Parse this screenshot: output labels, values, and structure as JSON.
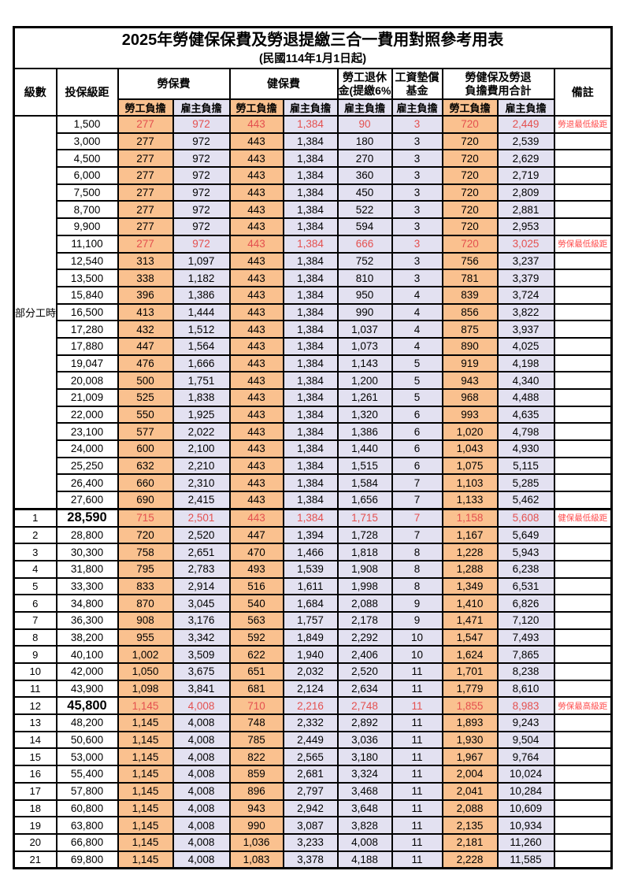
{
  "title": "2025年勞健保保費及勞退提繳三合一費用對照參考用表",
  "subtitle": "(民國114年1月1日起)",
  "colors": {
    "orange": "#fac18f",
    "lavender": "#e3e1f1",
    "red": "#e4504f",
    "remark_red": "#ff4d4d"
  },
  "header": {
    "level": "級數",
    "bracket": "投保級距",
    "labor_insurance": "勞保費",
    "health_insurance": "健保費",
    "pension_line1": "勞工退休",
    "pension_line2": "金(提繳6%)",
    "wage_fund_line1": "工資墊償",
    "wage_fund_line2": "基金",
    "total_line1": "勞健保及勞退",
    "total_line2": "負擔費用合計",
    "remark": "備註",
    "employee": "勞工負擔",
    "employer": "雇主負擔"
  },
  "part_time": {
    "label": "部分工時",
    "span": 23
  },
  "rows": [
    {
      "level": "",
      "bracket": "1,500",
      "values": [
        "277",
        "972",
        "443",
        "1,384",
        "90",
        "3",
        "720",
        "2,449"
      ],
      "remark": "勞退最低級距",
      "red": true,
      "bold": false,
      "thick": false
    },
    {
      "level": "",
      "bracket": "3,000",
      "values": [
        "277",
        "972",
        "443",
        "1,384",
        "180",
        "3",
        "720",
        "2,539"
      ],
      "remark": "",
      "red": false,
      "bold": false,
      "thick": false
    },
    {
      "level": "",
      "bracket": "4,500",
      "values": [
        "277",
        "972",
        "443",
        "1,384",
        "270",
        "3",
        "720",
        "2,629"
      ],
      "remark": "",
      "red": false,
      "bold": false,
      "thick": false
    },
    {
      "level": "",
      "bracket": "6,000",
      "values": [
        "277",
        "972",
        "443",
        "1,384",
        "360",
        "3",
        "720",
        "2,719"
      ],
      "remark": "",
      "red": false,
      "bold": false,
      "thick": false
    },
    {
      "level": "",
      "bracket": "7,500",
      "values": [
        "277",
        "972",
        "443",
        "1,384",
        "450",
        "3",
        "720",
        "2,809"
      ],
      "remark": "",
      "red": false,
      "bold": false,
      "thick": false
    },
    {
      "level": "",
      "bracket": "8,700",
      "values": [
        "277",
        "972",
        "443",
        "1,384",
        "522",
        "3",
        "720",
        "2,881"
      ],
      "remark": "",
      "red": false,
      "bold": false,
      "thick": false
    },
    {
      "level": "",
      "bracket": "9,900",
      "values": [
        "277",
        "972",
        "443",
        "1,384",
        "594",
        "3",
        "720",
        "2,953"
      ],
      "remark": "",
      "red": false,
      "bold": false,
      "thick": false
    },
    {
      "level": "",
      "bracket": "11,100",
      "values": [
        "277",
        "972",
        "443",
        "1,384",
        "666",
        "3",
        "720",
        "3,025"
      ],
      "remark": "勞保最低級距",
      "red": true,
      "bold": false,
      "thick": false
    },
    {
      "level": "",
      "bracket": "12,540",
      "values": [
        "313",
        "1,097",
        "443",
        "1,384",
        "752",
        "3",
        "756",
        "3,237"
      ],
      "remark": "",
      "red": false,
      "bold": false,
      "thick": false
    },
    {
      "level": "",
      "bracket": "13,500",
      "values": [
        "338",
        "1,182",
        "443",
        "1,384",
        "810",
        "3",
        "781",
        "3,379"
      ],
      "remark": "",
      "red": false,
      "bold": false,
      "thick": false
    },
    {
      "level": "",
      "bracket": "15,840",
      "values": [
        "396",
        "1,386",
        "443",
        "1,384",
        "950",
        "4",
        "839",
        "3,724"
      ],
      "remark": "",
      "red": false,
      "bold": false,
      "thick": false
    },
    {
      "level": "",
      "bracket": "16,500",
      "values": [
        "413",
        "1,444",
        "443",
        "1,384",
        "990",
        "4",
        "856",
        "3,822"
      ],
      "remark": "",
      "red": false,
      "bold": false,
      "thick": false
    },
    {
      "level": "",
      "bracket": "17,280",
      "values": [
        "432",
        "1,512",
        "443",
        "1,384",
        "1,037",
        "4",
        "875",
        "3,937"
      ],
      "remark": "",
      "red": false,
      "bold": false,
      "thick": false
    },
    {
      "level": "",
      "bracket": "17,880",
      "values": [
        "447",
        "1,564",
        "443",
        "1,384",
        "1,073",
        "4",
        "890",
        "4,025"
      ],
      "remark": "",
      "red": false,
      "bold": false,
      "thick": false
    },
    {
      "level": "",
      "bracket": "19,047",
      "values": [
        "476",
        "1,666",
        "443",
        "1,384",
        "1,143",
        "5",
        "919",
        "4,198"
      ],
      "remark": "",
      "red": false,
      "bold": false,
      "thick": false
    },
    {
      "level": "",
      "bracket": "20,008",
      "values": [
        "500",
        "1,751",
        "443",
        "1,384",
        "1,200",
        "5",
        "943",
        "4,340"
      ],
      "remark": "",
      "red": false,
      "bold": false,
      "thick": false
    },
    {
      "level": "",
      "bracket": "21,009",
      "values": [
        "525",
        "1,838",
        "443",
        "1,384",
        "1,261",
        "5",
        "968",
        "4,488"
      ],
      "remark": "",
      "red": false,
      "bold": false,
      "thick": false
    },
    {
      "level": "",
      "bracket": "22,000",
      "values": [
        "550",
        "1,925",
        "443",
        "1,384",
        "1,320",
        "6",
        "993",
        "4,635"
      ],
      "remark": "",
      "red": false,
      "bold": false,
      "thick": false
    },
    {
      "level": "",
      "bracket": "23,100",
      "values": [
        "577",
        "2,022",
        "443",
        "1,384",
        "1,386",
        "6",
        "1,020",
        "4,798"
      ],
      "remark": "",
      "red": false,
      "bold": false,
      "thick": false
    },
    {
      "level": "",
      "bracket": "24,000",
      "values": [
        "600",
        "2,100",
        "443",
        "1,384",
        "1,440",
        "6",
        "1,043",
        "4,930"
      ],
      "remark": "",
      "red": false,
      "bold": false,
      "thick": false
    },
    {
      "level": "",
      "bracket": "25,250",
      "values": [
        "632",
        "2,210",
        "443",
        "1,384",
        "1,515",
        "6",
        "1,075",
        "5,115"
      ],
      "remark": "",
      "red": false,
      "bold": false,
      "thick": false
    },
    {
      "level": "",
      "bracket": "26,400",
      "values": [
        "660",
        "2,310",
        "443",
        "1,384",
        "1,584",
        "7",
        "1,103",
        "5,285"
      ],
      "remark": "",
      "red": false,
      "bold": false,
      "thick": false
    },
    {
      "level": "",
      "bracket": "27,600",
      "values": [
        "690",
        "2,415",
        "443",
        "1,384",
        "1,656",
        "7",
        "1,133",
        "5,462"
      ],
      "remark": "",
      "red": false,
      "bold": false,
      "thick": false
    },
    {
      "level": "1",
      "bracket": "28,590",
      "values": [
        "715",
        "2,501",
        "443",
        "1,384",
        "1,715",
        "7",
        "1,158",
        "5,608"
      ],
      "remark": "健保最低級距",
      "red": true,
      "bold": true,
      "thick": true
    },
    {
      "level": "2",
      "bracket": "28,800",
      "values": [
        "720",
        "2,520",
        "447",
        "1,394",
        "1,728",
        "7",
        "1,167",
        "5,649"
      ],
      "remark": "",
      "red": false,
      "bold": false,
      "thick": false
    },
    {
      "level": "3",
      "bracket": "30,300",
      "values": [
        "758",
        "2,651",
        "470",
        "1,466",
        "1,818",
        "8",
        "1,228",
        "5,943"
      ],
      "remark": "",
      "red": false,
      "bold": false,
      "thick": false
    },
    {
      "level": "4",
      "bracket": "31,800",
      "values": [
        "795",
        "2,783",
        "493",
        "1,539",
        "1,908",
        "8",
        "1,288",
        "6,238"
      ],
      "remark": "",
      "red": false,
      "bold": false,
      "thick": false
    },
    {
      "level": "5",
      "bracket": "33,300",
      "values": [
        "833",
        "2,914",
        "516",
        "1,611",
        "1,998",
        "8",
        "1,349",
        "6,531"
      ],
      "remark": "",
      "red": false,
      "bold": false,
      "thick": false
    },
    {
      "level": "6",
      "bracket": "34,800",
      "values": [
        "870",
        "3,045",
        "540",
        "1,684",
        "2,088",
        "9",
        "1,410",
        "6,826"
      ],
      "remark": "",
      "red": false,
      "bold": false,
      "thick": false
    },
    {
      "level": "7",
      "bracket": "36,300",
      "values": [
        "908",
        "3,176",
        "563",
        "1,757",
        "2,178",
        "9",
        "1,471",
        "7,120"
      ],
      "remark": "",
      "red": false,
      "bold": false,
      "thick": false
    },
    {
      "level": "8",
      "bracket": "38,200",
      "values": [
        "955",
        "3,342",
        "592",
        "1,849",
        "2,292",
        "10",
        "1,547",
        "7,493"
      ],
      "remark": "",
      "red": false,
      "bold": false,
      "thick": false
    },
    {
      "level": "9",
      "bracket": "40,100",
      "values": [
        "1,002",
        "3,509",
        "622",
        "1,940",
        "2,406",
        "10",
        "1,624",
        "7,865"
      ],
      "remark": "",
      "red": false,
      "bold": false,
      "thick": false
    },
    {
      "level": "10",
      "bracket": "42,000",
      "values": [
        "1,050",
        "3,675",
        "651",
        "2,032",
        "2,520",
        "11",
        "1,701",
        "8,238"
      ],
      "remark": "",
      "red": false,
      "bold": false,
      "thick": false
    },
    {
      "level": "11",
      "bracket": "43,900",
      "values": [
        "1,098",
        "3,841",
        "681",
        "2,124",
        "2,634",
        "11",
        "1,779",
        "8,610"
      ],
      "remark": "",
      "red": false,
      "bold": false,
      "thick": false
    },
    {
      "level": "12",
      "bracket": "45,800",
      "values": [
        "1,145",
        "4,008",
        "710",
        "2,216",
        "2,748",
        "11",
        "1,855",
        "8,983"
      ],
      "remark": "勞保最高級距",
      "red": true,
      "bold": true,
      "thick": false
    },
    {
      "level": "13",
      "bracket": "48,200",
      "values": [
        "1,145",
        "4,008",
        "748",
        "2,332",
        "2,892",
        "11",
        "1,893",
        "9,243"
      ],
      "remark": "",
      "red": false,
      "bold": false,
      "thick": false
    },
    {
      "level": "14",
      "bracket": "50,600",
      "values": [
        "1,145",
        "4,008",
        "785",
        "2,449",
        "3,036",
        "11",
        "1,930",
        "9,504"
      ],
      "remark": "",
      "red": false,
      "bold": false,
      "thick": false
    },
    {
      "level": "15",
      "bracket": "53,000",
      "values": [
        "1,145",
        "4,008",
        "822",
        "2,565",
        "3,180",
        "11",
        "1,967",
        "9,764"
      ],
      "remark": "",
      "red": false,
      "bold": false,
      "thick": false
    },
    {
      "level": "16",
      "bracket": "55,400",
      "values": [
        "1,145",
        "4,008",
        "859",
        "2,681",
        "3,324",
        "11",
        "2,004",
        "10,024"
      ],
      "remark": "",
      "red": false,
      "bold": false,
      "thick": false
    },
    {
      "level": "17",
      "bracket": "57,800",
      "values": [
        "1,145",
        "4,008",
        "896",
        "2,797",
        "3,468",
        "11",
        "2,041",
        "10,284"
      ],
      "remark": "",
      "red": false,
      "bold": false,
      "thick": false
    },
    {
      "level": "18",
      "bracket": "60,800",
      "values": [
        "1,145",
        "4,008",
        "943",
        "2,942",
        "3,648",
        "11",
        "2,088",
        "10,609"
      ],
      "remark": "",
      "red": false,
      "bold": false,
      "thick": false
    },
    {
      "level": "19",
      "bracket": "63,800",
      "values": [
        "1,145",
        "4,008",
        "990",
        "3,087",
        "3,828",
        "11",
        "2,135",
        "10,934"
      ],
      "remark": "",
      "red": false,
      "bold": false,
      "thick": false
    },
    {
      "level": "20",
      "bracket": "66,800",
      "values": [
        "1,145",
        "4,008",
        "1,036",
        "3,233",
        "4,008",
        "11",
        "2,181",
        "11,260"
      ],
      "remark": "",
      "red": false,
      "bold": false,
      "thick": false
    },
    {
      "level": "21",
      "bracket": "69,800",
      "values": [
        "1,145",
        "4,008",
        "1,083",
        "3,378",
        "4,188",
        "11",
        "2,228",
        "11,585"
      ],
      "remark": "",
      "red": false,
      "bold": false,
      "thick": false
    }
  ],
  "value_column_backgrounds": [
    "o",
    "l",
    "o",
    "l",
    "l",
    "l",
    "o",
    "l"
  ]
}
